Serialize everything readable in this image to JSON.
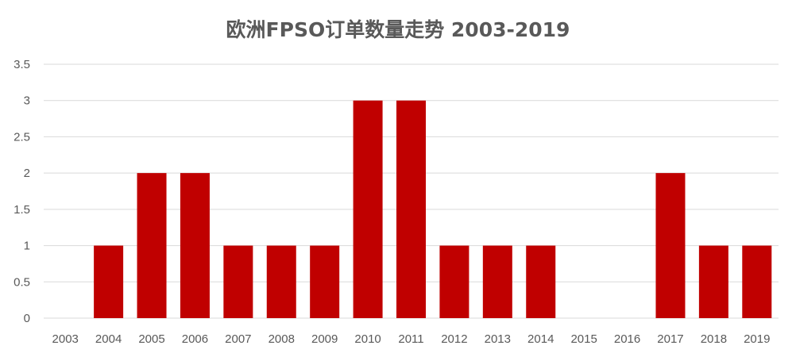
{
  "chart_data": {
    "type": "bar",
    "title": "欧洲FPSO订单数量走势 2003-2019",
    "xlabel": "",
    "ylabel": "",
    "categories": [
      "2003",
      "2004",
      "2005",
      "2006",
      "2007",
      "2008",
      "2009",
      "2010",
      "2011",
      "2012",
      "2013",
      "2014",
      "2015",
      "2016",
      "2017",
      "2018",
      "2019"
    ],
    "values": [
      0,
      1,
      2,
      2,
      1,
      1,
      1,
      3,
      3,
      1,
      1,
      1,
      0,
      0,
      2,
      1,
      1
    ],
    "ylim": [
      0,
      3.5
    ],
    "yticks": [
      "0",
      "0.5",
      "1",
      "1.5",
      "2",
      "2.5",
      "3",
      "3.5"
    ],
    "bar_color": "#c00000",
    "grid": true,
    "legend": "none"
  }
}
